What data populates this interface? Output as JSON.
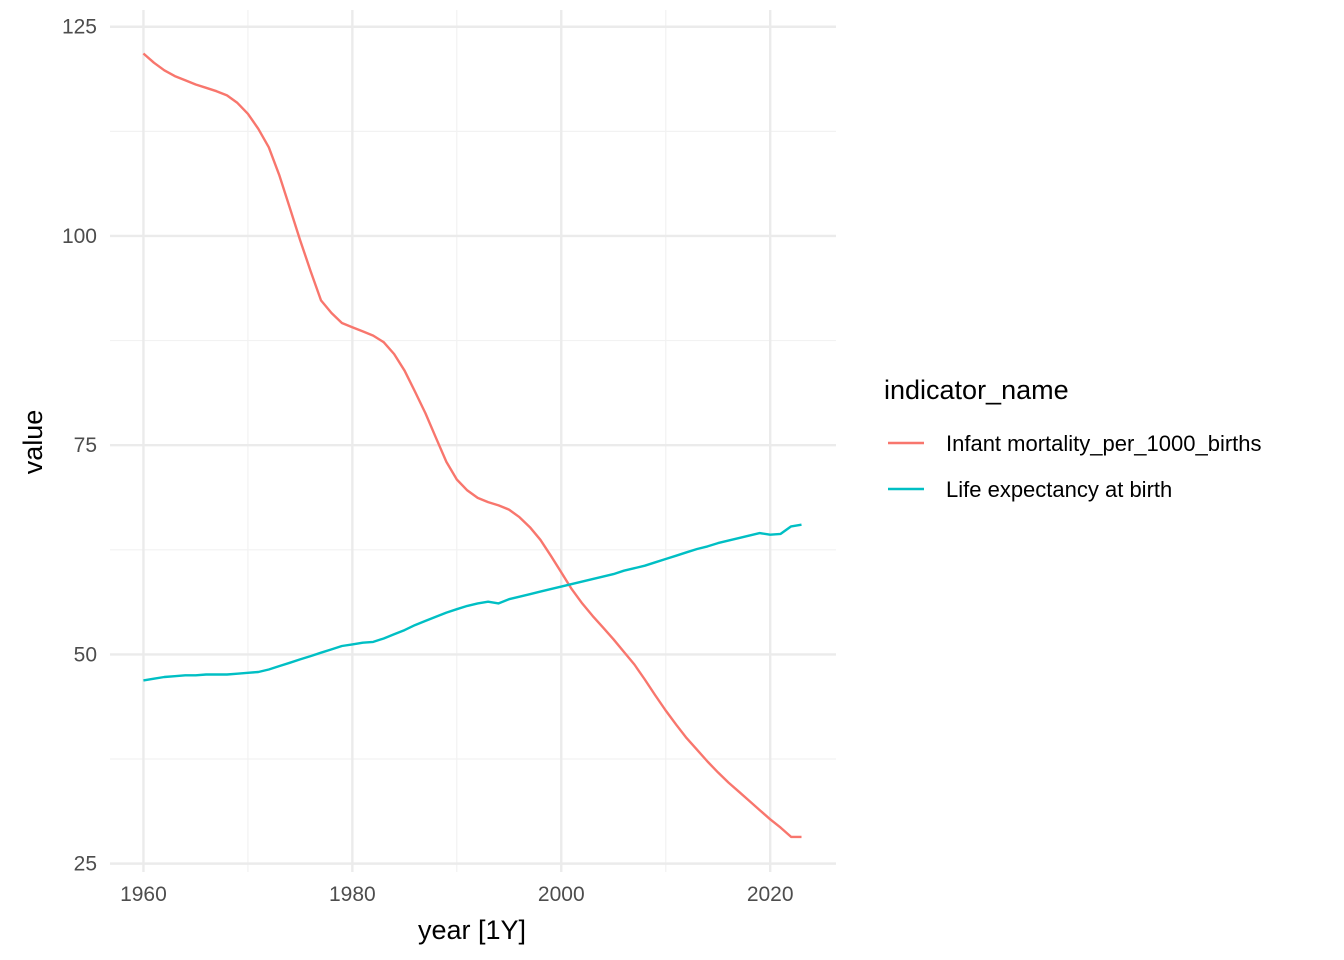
{
  "chart_data": {
    "type": "line",
    "xlabel": "year [1Y]",
    "ylabel": "value",
    "xlim": [
      1956.8,
      2026.3
    ],
    "ylim": [
      24.0,
      127.0
    ],
    "x_ticks": [
      1960,
      1980,
      2000,
      2020
    ],
    "y_ticks": [
      25,
      50,
      75,
      100,
      125
    ],
    "grid": true,
    "legend": {
      "title": "indicator_name",
      "placement": "right"
    },
    "series": [
      {
        "name": "Infant mortality_per_1000_births",
        "color": "#F8766D",
        "x": [
          1960,
          1961,
          1962,
          1963,
          1964,
          1965,
          1966,
          1967,
          1968,
          1969,
          1970,
          1971,
          1972,
          1973,
          1974,
          1975,
          1976,
          1977,
          1978,
          1979,
          1980,
          1981,
          1982,
          1983,
          1984,
          1985,
          1986,
          1987,
          1988,
          1989,
          1990,
          1991,
          1992,
          1993,
          1994,
          1995,
          1996,
          1997,
          1998,
          1999,
          2000,
          2001,
          2002,
          2003,
          2004,
          2005,
          2006,
          2007,
          2008,
          2009,
          2010,
          2011,
          2012,
          2013,
          2014,
          2015,
          2016,
          2017,
          2018,
          2019,
          2020,
          2021,
          2022,
          2023
        ],
        "values": [
          121.8,
          120.7,
          119.8,
          119.1,
          118.6,
          118.1,
          117.7,
          117.3,
          116.8,
          115.9,
          114.6,
          112.8,
          110.6,
          107.3,
          103.4,
          99.5,
          95.8,
          92.3,
          90.8,
          89.6,
          89.1,
          88.6,
          88.1,
          87.3,
          85.9,
          83.9,
          81.4,
          78.8,
          75.9,
          73.0,
          70.9,
          69.6,
          68.7,
          68.2,
          67.8,
          67.3,
          66.4,
          65.2,
          63.7,
          61.8,
          59.8,
          57.8,
          56.1,
          54.6,
          53.2,
          51.8,
          50.3,
          48.8,
          47.0,
          45.1,
          43.3,
          41.6,
          40.0,
          38.6,
          37.2,
          35.9,
          34.7,
          33.6,
          32.5,
          31.4,
          30.3,
          29.3,
          28.2,
          28.2
        ]
      },
      {
        "name": "Life expectancy at birth",
        "color": "#00BFC4",
        "x": [
          1960,
          1961,
          1962,
          1963,
          1964,
          1965,
          1966,
          1967,
          1968,
          1969,
          1970,
          1971,
          1972,
          1973,
          1974,
          1975,
          1976,
          1977,
          1978,
          1979,
          1980,
          1981,
          1982,
          1983,
          1984,
          1985,
          1986,
          1987,
          1988,
          1989,
          1990,
          1991,
          1992,
          1993,
          1994,
          1995,
          1996,
          1997,
          1998,
          1999,
          2000,
          2001,
          2002,
          2003,
          2004,
          2005,
          2006,
          2007,
          2008,
          2009,
          2010,
          2011,
          2012,
          2013,
          2014,
          2015,
          2016,
          2017,
          2018,
          2019,
          2020,
          2021,
          2022,
          2023
        ],
        "values": [
          46.9,
          47.1,
          47.3,
          47.4,
          47.5,
          47.5,
          47.6,
          47.6,
          47.6,
          47.7,
          47.8,
          47.9,
          48.2,
          48.6,
          49.0,
          49.4,
          49.8,
          50.2,
          50.6,
          51.0,
          51.2,
          51.4,
          51.5,
          51.9,
          52.4,
          52.9,
          53.5,
          54.0,
          54.5,
          55.0,
          55.4,
          55.8,
          56.1,
          56.3,
          56.1,
          56.6,
          56.9,
          57.2,
          57.5,
          57.8,
          58.1,
          58.4,
          58.7,
          59.0,
          59.3,
          59.6,
          60.0,
          60.3,
          60.6,
          61.0,
          61.4,
          61.8,
          62.2,
          62.6,
          62.9,
          63.3,
          63.6,
          63.9,
          64.2,
          64.5,
          64.3,
          64.4,
          65.3,
          65.5
        ]
      }
    ]
  }
}
